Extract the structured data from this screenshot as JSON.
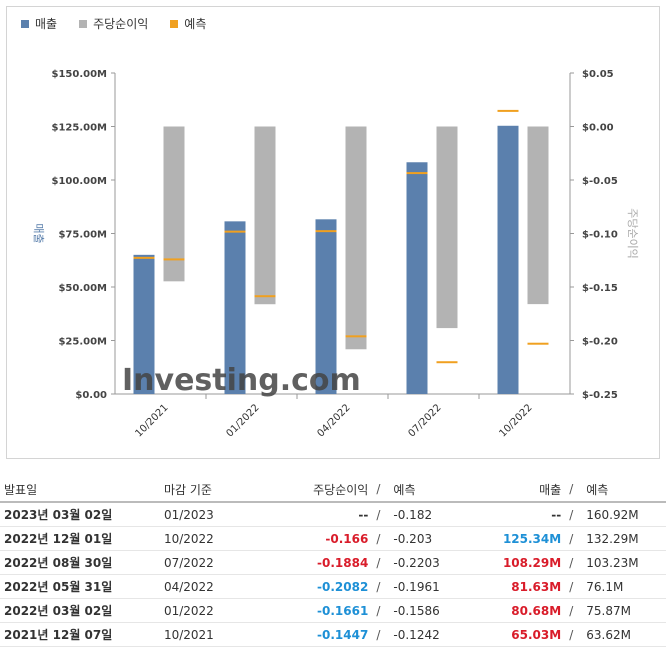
{
  "legend": [
    {
      "label": "매출",
      "color": "#5b80ad"
    },
    {
      "label": "주당순이익",
      "color": "#b3b3b3"
    },
    {
      "label": "예측",
      "color": "#f0a020"
    }
  ],
  "chart_data": {
    "type": "bar",
    "categories": [
      "10/2021",
      "01/2022",
      "04/2022",
      "07/2022",
      "10/2022"
    ],
    "series": [
      {
        "name": "매출",
        "axis": "left",
        "values": [
          65.03,
          80.68,
          81.63,
          108.29,
          125.34
        ],
        "forecast": [
          63.62,
          75.87,
          76.1,
          103.23,
          132.29
        ]
      },
      {
        "name": "주당순이익",
        "axis": "right",
        "values": [
          -0.1447,
          -0.1661,
          -0.2082,
          -0.1884,
          -0.166
        ],
        "forecast": [
          -0.1242,
          -0.1586,
          -0.1961,
          -0.2203,
          -0.203
        ]
      }
    ],
    "left_axis": {
      "label": "매출",
      "ticks": [
        "$0.00",
        "$25.00M",
        "$50.00M",
        "$75.00M",
        "$100.00M",
        "$125.00M",
        "$150.00M"
      ],
      "range": [
        0,
        150
      ]
    },
    "right_axis": {
      "label": "주당순이익",
      "ticks": [
        "$-0.25",
        "$-0.20",
        "$-0.15",
        "$-0.10",
        "$-0.05",
        "$0.00",
        "$0.05"
      ],
      "range": [
        -0.25,
        0.05
      ]
    },
    "watermark": "Investing.com"
  },
  "table": {
    "headers": {
      "date": "발표일",
      "period": "마감 기준",
      "eps": "주당순이익",
      "eps_sep": "/",
      "eps_forecast": "예측",
      "revenue": "매출",
      "revenue_sep": "/",
      "revenue_forecast": "예측"
    },
    "rows": [
      {
        "date": "2023년 03월 02일",
        "period": "01/2023",
        "eps": "--",
        "eps_color": "dark",
        "eps_forecast": "-0.182",
        "revenue": "--",
        "revenue_color": "dark",
        "revenue_forecast": "160.92M"
      },
      {
        "date": "2022년 12월 01일",
        "period": "10/2022",
        "eps": "-0.166",
        "eps_color": "neg",
        "eps_forecast": "-0.203",
        "revenue": "125.34M",
        "revenue_color": "pos",
        "revenue_forecast": "132.29M"
      },
      {
        "date": "2022년 08월 30일",
        "period": "07/2022",
        "eps": "-0.1884",
        "eps_color": "neg",
        "eps_forecast": "-0.2203",
        "revenue": "108.29M",
        "revenue_color": "neg",
        "revenue_forecast": "103.23M"
      },
      {
        "date": "2022년 05월 31일",
        "period": "04/2022",
        "eps": "-0.2082",
        "eps_color": "pos",
        "eps_forecast": "-0.1961",
        "revenue": "81.63M",
        "revenue_color": "neg",
        "revenue_forecast": "76.1M"
      },
      {
        "date": "2022년 03월 02일",
        "period": "01/2022",
        "eps": "-0.1661",
        "eps_color": "pos",
        "eps_forecast": "-0.1586",
        "revenue": "80.68M",
        "revenue_color": "neg",
        "revenue_forecast": "75.87M"
      },
      {
        "date": "2021년 12월 07일",
        "period": "10/2021",
        "eps": "-0.1447",
        "eps_color": "pos",
        "eps_forecast": "-0.1242",
        "revenue": "65.03M",
        "revenue_color": "neg",
        "revenue_forecast": "63.62M"
      }
    ]
  }
}
